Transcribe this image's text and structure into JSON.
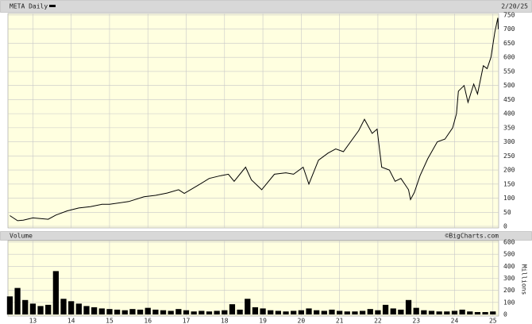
{
  "chart_data": [
    {
      "type": "line",
      "title": "META Daily",
      "subtitle": "2/20/25",
      "color": "#000000",
      "grid": true,
      "x": [
        2012.4,
        2012.6,
        2012.75,
        2013.0,
        2013.4,
        2013.6,
        2013.9,
        2014.2,
        2014.5,
        2014.8,
        2015.0,
        2015.5,
        2015.9,
        2016.2,
        2016.5,
        2016.8,
        2016.95,
        2017.3,
        2017.6,
        2017.9,
        2018.1,
        2018.25,
        2018.55,
        2018.7,
        2018.97,
        2019.3,
        2019.6,
        2019.8,
        2020.05,
        2020.2,
        2020.45,
        2020.7,
        2020.9,
        2021.1,
        2021.5,
        2021.65,
        2021.85,
        2021.98,
        2022.1,
        2022.3,
        2022.45,
        2022.6,
        2022.8,
        2022.85,
        2022.95,
        2023.1,
        2023.3,
        2023.55,
        2023.75,
        2023.95,
        2024.05,
        2024.1,
        2024.25,
        2024.35,
        2024.5,
        2024.6,
        2024.75,
        2024.85,
        2024.95,
        2025.05,
        2025.13,
        2025.14
      ],
      "values": [
        38,
        20,
        22,
        30,
        25,
        40,
        55,
        65,
        70,
        78,
        78,
        88,
        105,
        110,
        118,
        130,
        117,
        145,
        170,
        180,
        185,
        160,
        210,
        165,
        130,
        185,
        190,
        185,
        210,
        150,
        235,
        260,
        275,
        265,
        340,
        380,
        330,
        345,
        210,
        200,
        160,
        170,
        130,
        95,
        120,
        180,
        240,
        300,
        310,
        350,
        400,
        480,
        500,
        440,
        505,
        470,
        570,
        560,
        600,
        690,
        740,
        700
      ],
      "xlim": [
        2012.35,
        2025.15
      ],
      "ylim": [
        0,
        750
      ],
      "yticks": [
        0,
        50,
        100,
        150,
        200,
        250,
        300,
        350,
        400,
        450,
        500,
        550,
        600,
        650,
        700,
        750
      ]
    },
    {
      "type": "bar",
      "title": "Volume",
      "source": "©BigCharts.com",
      "ylabel": "Millions",
      "color": "#000000",
      "grid": true,
      "x": [
        2012.4,
        2012.6,
        2012.8,
        2013.0,
        2013.2,
        2013.4,
        2013.6,
        2013.8,
        2014.0,
        2014.2,
        2014.4,
        2014.6,
        2014.8,
        2015.0,
        2015.2,
        2015.4,
        2015.6,
        2015.8,
        2016.0,
        2016.2,
        2016.4,
        2016.6,
        2016.8,
        2017.0,
        2017.2,
        2017.4,
        2017.6,
        2017.8,
        2018.0,
        2018.2,
        2018.4,
        2018.6,
        2018.8,
        2019.0,
        2019.2,
        2019.4,
        2019.6,
        2019.8,
        2020.0,
        2020.2,
        2020.4,
        2020.6,
        2020.8,
        2021.0,
        2021.2,
        2021.4,
        2021.6,
        2021.8,
        2022.0,
        2022.2,
        2022.4,
        2022.6,
        2022.8,
        2023.0,
        2023.2,
        2023.4,
        2023.6,
        2023.8,
        2024.0,
        2024.2,
        2024.4,
        2024.6,
        2024.8,
        2025.0
      ],
      "values": [
        150,
        220,
        120,
        90,
        70,
        80,
        360,
        130,
        110,
        90,
        70,
        60,
        50,
        45,
        40,
        35,
        45,
        40,
        55,
        40,
        35,
        30,
        45,
        35,
        25,
        30,
        25,
        30,
        35,
        85,
        40,
        130,
        60,
        50,
        35,
        30,
        25,
        30,
        35,
        50,
        35,
        30,
        40,
        30,
        25,
        25,
        30,
        45,
        35,
        80,
        50,
        40,
        120,
        55,
        35,
        30,
        25,
        25,
        30,
        40,
        25,
        20,
        20,
        25
      ],
      "xlim": [
        2012.35,
        2025.15
      ],
      "ylim": [
        0,
        600
      ],
      "yticks": [
        0,
        100,
        200,
        300,
        400,
        500,
        600
      ],
      "xticks": [
        {
          "value": 2013,
          "label": "13"
        },
        {
          "value": 2014,
          "label": "14"
        },
        {
          "value": 2015,
          "label": "15"
        },
        {
          "value": 2016,
          "label": "16"
        },
        {
          "value": 2017,
          "label": "17"
        },
        {
          "value": 2018,
          "label": "18"
        },
        {
          "value": 2019,
          "label": "19"
        },
        {
          "value": 2020,
          "label": "20"
        },
        {
          "value": 2021,
          "label": "21"
        },
        {
          "value": 2022,
          "label": "22"
        },
        {
          "value": 2023,
          "label": "23"
        },
        {
          "value": 2024,
          "label": "24"
        },
        {
          "value": 2025,
          "label": "25"
        }
      ]
    }
  ]
}
